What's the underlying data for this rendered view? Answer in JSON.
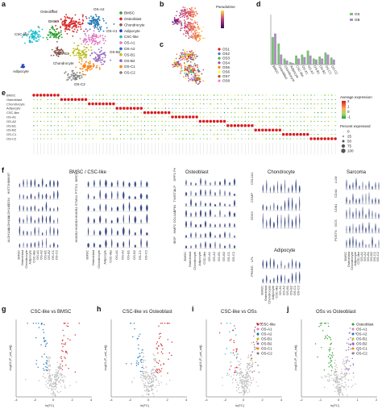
{
  "labels": {
    "a": "a",
    "b": "b",
    "c": "c",
    "d": "d",
    "e": "e",
    "f": "f",
    "g": "g",
    "h": "h",
    "i": "i",
    "j": "j"
  },
  "clusters": [
    {
      "name": "BMSC",
      "color": "#2ca02c"
    },
    {
      "name": "Osteoblast",
      "color": "#d62728"
    },
    {
      "name": "Chondrocyte",
      "color": "#8c564b"
    },
    {
      "name": "Adipocyte",
      "color": "#1f3fbf"
    },
    {
      "name": "CSC-like",
      "color": "#17becf"
    },
    {
      "name": "OS-A1",
      "color": "#e377c2"
    },
    {
      "name": "OS-A2",
      "color": "#1f77b4"
    },
    {
      "name": "OS-B1",
      "color": "#bcbd22"
    },
    {
      "name": "OS-B2",
      "color": "#9467bd"
    },
    {
      "name": "OS-C1",
      "color": "#ff7f0e"
    },
    {
      "name": "OS-C2",
      "color": "#7f7f7f"
    }
  ],
  "umap_labels": [
    "OS-A2",
    "Osteoblast",
    "BMSC",
    "CSC-like",
    "Chondrocyte",
    "OS-A1",
    "Adipocyte",
    "OS-B1",
    "OS-B2",
    "OS-C2"
  ],
  "panel_b": {
    "legend_title": "Pseudotime"
  },
  "panel_c": {
    "legend": [
      "OS1",
      "OS2",
      "OS3",
      "OS4",
      "OS5",
      "OS6",
      "OS7",
      "OS8"
    ],
    "colors": [
      "#e41a1c",
      "#377eb8",
      "#4daf4a",
      "#984ea3",
      "#ff7f00",
      "#ffff33",
      "#a65628",
      "#f781bf"
    ]
  },
  "panel_d": {
    "legend": [
      "OS",
      "GB"
    ],
    "categories": [
      "BMSC",
      "Osteoblast",
      "Chondrocyte",
      "Adipocyte",
      "CSC-like",
      "OS-A1",
      "OS-A2",
      "OS-B1",
      "OS-B2",
      "OS-C1",
      "OS-C2"
    ]
  },
  "panel_e": {
    "rows": [
      "BMSC",
      "Osteoblast",
      "Chondrocyte",
      "Adipocyte",
      "CSC-like",
      "OS-A1",
      "OS-A2",
      "OS-B1",
      "OS-B2",
      "OS-C1",
      "OS-C2"
    ],
    "legend_avg": "Average expression",
    "avg_ticks": [
      "2",
      "1",
      "0",
      "-1"
    ],
    "legend_pct": "Percent expressed",
    "pct_ticks": [
      "0",
      "25",
      "50",
      "75",
      "100"
    ]
  },
  "panel_f": {
    "titles": [
      "BMSC / CSC-like",
      "Osteoblast",
      "Chondrocyte",
      "Adipocyte",
      "Sarcoma"
    ],
    "genes_bmsc": [
      "MKI67",
      "HIST2H1",
      "CD34",
      "ALDH1A1",
      "ALDH4A1",
      "ALDH1A1"
    ],
    "genes_bmsc2": [
      "BIRC5",
      "PTTG1",
      "STMN1",
      "HMGB1",
      "HMGB3",
      "HMGB2"
    ],
    "genes_ost": [
      "DPP1 PHEX1",
      "ALP",
      "TWIST1",
      "SP81",
      "COL1A1",
      "MMP2",
      "IBSP"
    ],
    "genes_chon": [
      "COL2A1",
      "COMP",
      "SOX9"
    ],
    "genes_adipo": [
      "LPL",
      "PPARG"
    ],
    "genes_sarc": [
      "LUM",
      "CD44",
      "CD81",
      "GCS",
      "POSTN"
    ],
    "xcats": [
      "BMSC",
      "Osteoblast",
      "Chondrocyte",
      "Adipocyte",
      "CSC-like",
      "OS-A1",
      "OS-A2",
      "OS-B1",
      "OS-B2",
      "OS-C1",
      "OS-C2"
    ]
  },
  "panel_g": {
    "title": "CSC-like vs BMSC",
    "xlabel": "ln(FC)",
    "ylabel": "-log10 (P_val_adj)"
  },
  "panel_h": {
    "title": "CSC-like vs Osteoblast",
    "xlabel": "ln(FC)",
    "ylabel": "-log10 (P_val_adj)"
  },
  "panel_i": {
    "title": "CSC-like vs OSs",
    "xlabel": "ln(FC)",
    "ylabel": "-log10 (P_val_adj)",
    "legend": [
      "CSC-like",
      "OS-A1",
      "OS-A2",
      "OS-B1",
      "OS-B2",
      "OS-C1",
      "OS-C2"
    ]
  },
  "panel_j": {
    "title": "OSs vs Osteoblast",
    "xlabel": "ln(FC)",
    "ylabel": "-log10 (P_val_adj)",
    "legend": [
      "Osteoblast",
      "OS-A1",
      "OS-A2",
      "OS-B1",
      "OS-B2",
      "OS-C1",
      "OS-C2"
    ]
  },
  "volcano_ticks_x": [
    "-4",
    "-2",
    "0",
    "2",
    "4"
  ],
  "volcano_ticks_xj": [
    "-2",
    "-1",
    "0",
    "1",
    "2"
  ]
}
